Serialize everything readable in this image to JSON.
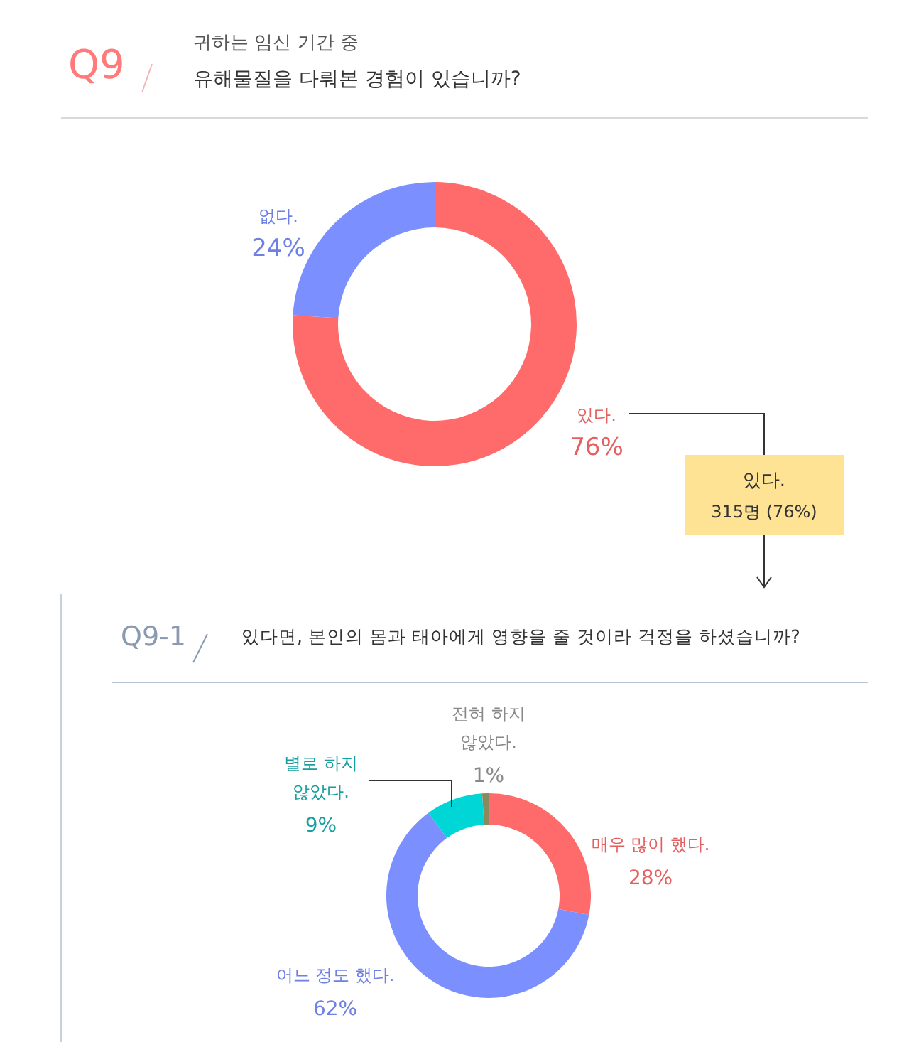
{
  "chart_data": [
    {
      "type": "donut",
      "title": "귀하는 임신 기간 중 유해물질을 다뤄본 경험이 있습니까?",
      "annotations": [
        "Q9",
        "있다. 315명 (76%)"
      ],
      "categories": [
        "있다.",
        "없다."
      ],
      "values": [
        76,
        24
      ],
      "colors": [
        "#ff6b6b",
        "#7b8fff"
      ],
      "value_labels": [
        "76%",
        "24%"
      ]
    },
    {
      "type": "donut",
      "title": "있다면, 본인의 몸과 태아에게 영향을 줄 것이라 걱정을 하셨습니까?",
      "annotations": [
        "Q9-1"
      ],
      "categories": [
        "매우 많이 했다.",
        "어느 정도 했다.",
        "별로 하지 않았다.",
        "전혀 하지 않았다."
      ],
      "values": [
        28,
        62,
        9,
        1
      ],
      "colors": [
        "#ff6b6b",
        "#7b8fff",
        "#00d6d6",
        "#8a8a60"
      ],
      "value_labels": [
        "28%",
        "62%",
        "9%",
        "1%"
      ]
    }
  ]
}
